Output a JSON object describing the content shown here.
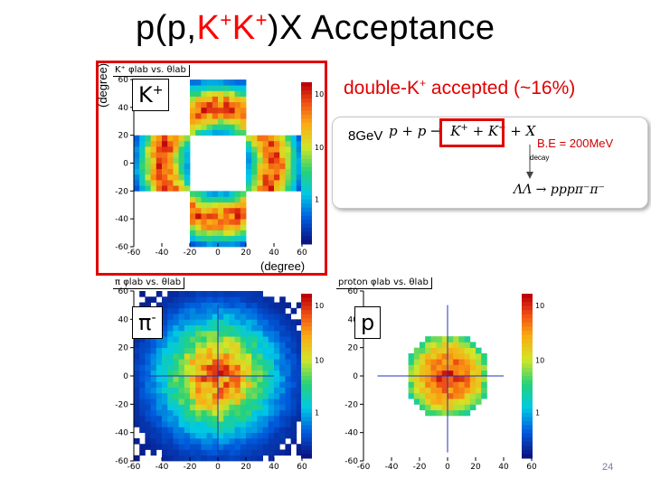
{
  "slide": {
    "title_prefix": "p(p,",
    "title_k1": "K",
    "title_k1_sup": "+",
    "title_k2": "K",
    "title_k2_sup": "+",
    "title_suffix": ")X Acceptance",
    "unit_label_left": "(degree)",
    "unit_label_bottom": "(degree)",
    "double_label": "double-K",
    "double_label_sup": "+",
    "double_label_rest": " accepted (~16%)",
    "beam_energy": "8GeV",
    "reaction_lhs": "p + p →",
    "reaction_products": "K",
    "reaction_products_sup1": "+",
    "reaction_plus": " + K",
    "reaction_products_sup2": "+",
    "reaction_x": " + X",
    "binding_energy": "B.E = 200MeV",
    "decay_label": "decay",
    "decay_reaction": "ΛΛ → pppπ⁻π⁻",
    "page_number": "24"
  },
  "chart_data": [
    {
      "type": "heatmap",
      "title": "K⁺ φlab vs. θlab",
      "particle_label": "K",
      "particle_sup": "+",
      "xlim": [
        -60,
        60
      ],
      "ylim": [
        -60,
        60
      ],
      "xticks": [
        -60,
        -40,
        -20,
        0,
        20,
        40,
        60
      ],
      "yticks": [
        -60,
        -40,
        -20,
        0,
        20,
        40,
        60
      ],
      "color_scale": "log",
      "colorbar_labels": [
        "10",
        "10",
        "1"
      ],
      "distribution": "cross",
      "cross_half_width": 20,
      "cross_inner_cut": 20,
      "cross_outer_cut": 60,
      "peak_ring_radius": 40,
      "grid": false
    },
    {
      "type": "heatmap",
      "title": "π φlab vs. θlab",
      "particle_label": "π",
      "particle_sup": "-",
      "xlim": [
        -60,
        60
      ],
      "ylim": [
        -60,
        60
      ],
      "xticks": [
        -60,
        -40,
        -20,
        0,
        20,
        40,
        60
      ],
      "yticks": [
        -60,
        -40,
        -20,
        0,
        20,
        40,
        60
      ],
      "color_scale": "log",
      "colorbar_labels": [
        "10",
        "10",
        "1"
      ],
      "distribution": "gaussian",
      "sigma": 28,
      "guide_line_y": 0,
      "grid": false
    },
    {
      "type": "heatmap",
      "title": "proton φlab vs. θlab",
      "particle_label": "p",
      "particle_sup": "",
      "xlim": [
        -60,
        60
      ],
      "ylim": [
        -60,
        60
      ],
      "xticks": [
        -60,
        -40,
        -20,
        0,
        20,
        40,
        60
      ],
      "yticks": [
        -60,
        -40,
        -20,
        0,
        20,
        40,
        60
      ],
      "color_scale": "log",
      "colorbar_labels": [
        "10",
        "10",
        "1"
      ],
      "distribution": "disk",
      "disk_radius": 30,
      "guide_line_y": 0,
      "grid": false
    }
  ]
}
